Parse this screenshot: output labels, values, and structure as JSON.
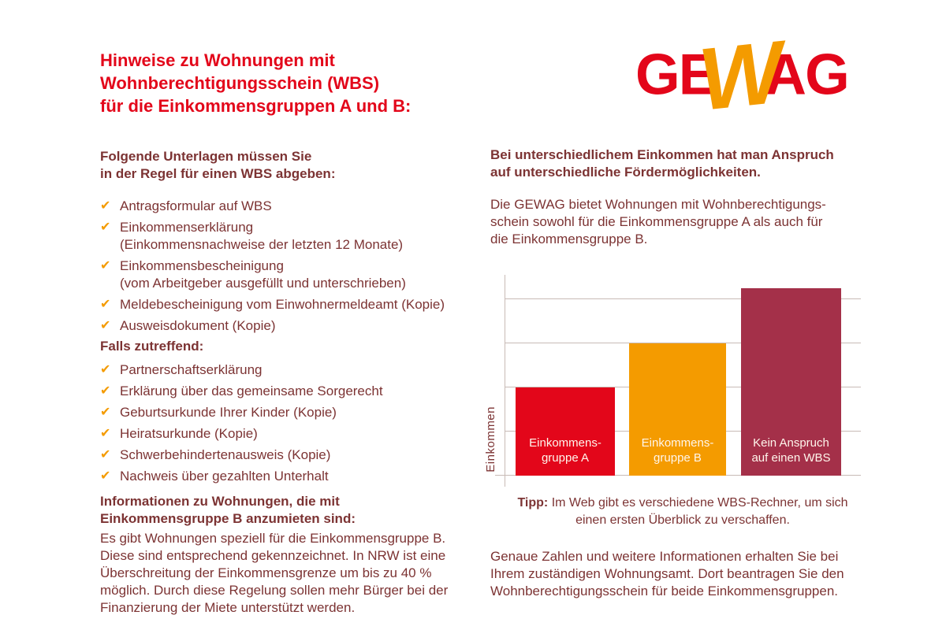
{
  "colors": {
    "brand_red": "#e3061a",
    "brand_orange": "#f49b00",
    "text_maroon": "#7c3333",
    "bar_dark_red": "#a43049",
    "gridline": "#c8bbb6",
    "bar_label_text": "#fff6ec"
  },
  "icons": {
    "check": "✔"
  },
  "logo": {
    "ge": "GE",
    "w": "W",
    "ag": "AG"
  },
  "left_column": {
    "title": "Hinweise zu Wohnungen mit\nWohnberechtigungsschein (WBS)\nfür die Einkommensgruppen A und B:",
    "required_heading": "Folgende Unterlagen müssen Sie\nin der Regel für einen WBS abgeben:",
    "required_docs": [
      "Antragsformular auf WBS",
      "Einkommenserklärung\n(Einkommensnachweise der letzten 12 Monate)",
      "Einkommensbescheinigung\n(vom Arbeitgeber ausgefüllt und unterschrieben)",
      "Meldebescheinigung vom Einwohnermeldeamt (Kopie)",
      "Ausweisdokument (Kopie)"
    ],
    "conditional_heading": "Falls zutreffend:",
    "conditional_docs": [
      "Partnerschaftserklärung",
      "Erklärung über das gemeinsame Sorgerecht",
      "Geburtsurkunde Ihrer Kinder (Kopie)",
      "Heiratsurkunde (Kopie)",
      "Schwerbehindertenausweis (Kopie)",
      "Nachweis über gezahlten Unterhalt"
    ],
    "info_heading": "Informationen zu Wohnungen, die mit\nEinkommensgruppe B anzumieten sind:",
    "info_text": "Es gibt Wohnungen speziell für die Einkommensgruppe B.\nDiese sind entsprechend gekennzeichnet. In NRW ist eine\nÜberschreitung der Einkommensgrenze um bis zu 40 %\nmöglich. Durch diese Regelung sollen mehr Bürger bei der\nFinanzierung der Miete unterstützt werden."
  },
  "right_column": {
    "intro_heading": "Bei unterschiedlichem Einkommen hat man Anspruch\nauf unterschiedliche Fördermöglichkeiten.",
    "intro_text": "Die GEWAG bietet Wohnungen mit Wohnberechtigungs-\nschein sowohl für die Einkommensgruppe A als auch für\ndie Einkommensgruppe B.",
    "tipp_label": "Tipp:",
    "tipp_text": "Im Web gibt es verschiedene WBS-Rechner, um sich\neinen ersten Überblick zu verschaffen.",
    "closing_text": "Genaue Zahlen und weitere Informationen erhalten Sie bei\nIhrem zuständigen Wohnungsamt. Dort beantragen Sie den\nWohnberechtigungsschein für beide Einkommensgruppen."
  },
  "chart_data": {
    "type": "bar",
    "title": "",
    "ylabel": "Einkommen",
    "xlabel": "",
    "categories": [
      "Einkommensgruppe A",
      "Einkommensgruppe B",
      "Kein Anspruch auf einen WBS"
    ],
    "values": [
      2,
      3,
      4.25
    ],
    "ylim": [
      0,
      4.5
    ],
    "ymax": 4.5,
    "units": "relative income, no numeric scale shown; values estimated in gridline units",
    "grid": true,
    "legend": false,
    "colors": [
      "#e3061a",
      "#f49b00",
      "#a43049"
    ],
    "bar_labels": [
      "Einkommens-\ngruppe A",
      "Einkommens-\ngruppe B",
      "Kein Anspruch\nauf einen WBS"
    ]
  }
}
